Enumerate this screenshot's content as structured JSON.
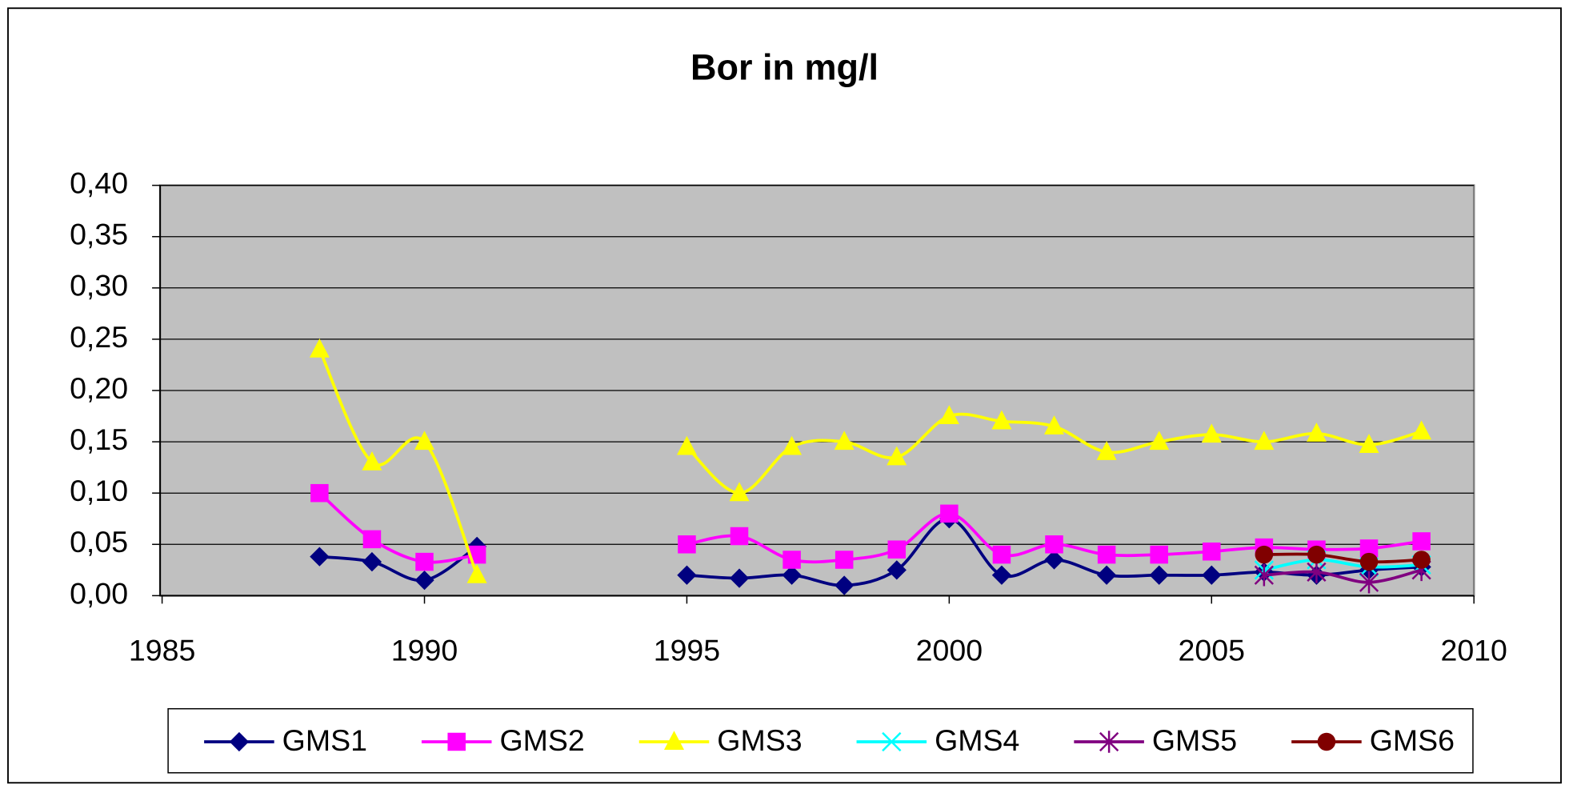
{
  "chart_data": {
    "type": "line",
    "title": "Bor in mg/l",
    "x": [
      1988,
      1989,
      1990,
      1991,
      1992,
      1993,
      1994,
      1995,
      1996,
      1997,
      1998,
      1999,
      2000,
      2001,
      2002,
      2003,
      2004,
      2005,
      2006,
      2007,
      2008,
      2009
    ],
    "series": [
      {
        "name": "GMS1",
        "color": "#000080",
        "marker": "diamond",
        "values": [
          0.038,
          0.033,
          0.015,
          0.048,
          null,
          null,
          null,
          0.02,
          0.017,
          0.02,
          0.01,
          0.025,
          0.075,
          0.02,
          0.035,
          0.02,
          0.02,
          0.02,
          0.023,
          0.02,
          0.025,
          0.028
        ]
      },
      {
        "name": "GMS2",
        "color": "#ff00ff",
        "marker": "square",
        "values": [
          0.1,
          0.055,
          0.033,
          0.04,
          null,
          null,
          null,
          0.05,
          0.058,
          0.035,
          0.035,
          0.045,
          0.08,
          0.04,
          0.05,
          0.04,
          0.04,
          0.043,
          0.047,
          0.045,
          0.046,
          0.053
        ]
      },
      {
        "name": "GMS3",
        "color": "#ffff00",
        "marker": "triangle",
        "values": [
          0.24,
          0.13,
          0.15,
          0.02,
          null,
          null,
          null,
          0.145,
          0.1,
          0.145,
          0.15,
          0.135,
          0.175,
          0.17,
          0.165,
          0.14,
          0.15,
          0.157,
          0.15,
          0.158,
          0.147,
          0.16
        ]
      },
      {
        "name": "GMS4",
        "color": "#00ffff",
        "marker": "x",
        "values": [
          null,
          null,
          null,
          null,
          null,
          null,
          null,
          null,
          null,
          null,
          null,
          null,
          null,
          null,
          null,
          null,
          null,
          null,
          0.025,
          0.035,
          0.028,
          0.03
        ]
      },
      {
        "name": "GMS5",
        "color": "#800080",
        "marker": "star",
        "values": [
          null,
          null,
          null,
          null,
          null,
          null,
          null,
          null,
          null,
          null,
          null,
          null,
          null,
          null,
          null,
          null,
          null,
          null,
          0.02,
          0.023,
          0.013,
          0.025
        ]
      },
      {
        "name": "GMS6",
        "color": "#800000",
        "marker": "circle",
        "values": [
          null,
          null,
          null,
          null,
          null,
          null,
          null,
          null,
          null,
          null,
          null,
          null,
          null,
          null,
          null,
          null,
          null,
          null,
          0.04,
          0.04,
          0.033,
          0.035
        ]
      }
    ],
    "xlim": [
      1985,
      2010
    ],
    "xticks": [
      1985,
      1990,
      1995,
      2000,
      2005,
      2010
    ],
    "ylim": [
      0,
      0.4
    ],
    "yticks": [
      {
        "value": 0,
        "label": "0,00"
      },
      {
        "value": 0.05,
        "label": "0,05"
      },
      {
        "value": 0.1,
        "label": "0,10"
      },
      {
        "value": 0.15,
        "label": "0,15"
      },
      {
        "value": 0.2,
        "label": "0,20"
      },
      {
        "value": 0.25,
        "label": "0,25"
      },
      {
        "value": 0.3,
        "label": "0,30"
      },
      {
        "value": 0.35,
        "label": "0,35"
      },
      {
        "value": 0.4,
        "label": "0,40"
      }
    ],
    "grid": true,
    "smooth": true,
    "legend": "bottom"
  }
}
